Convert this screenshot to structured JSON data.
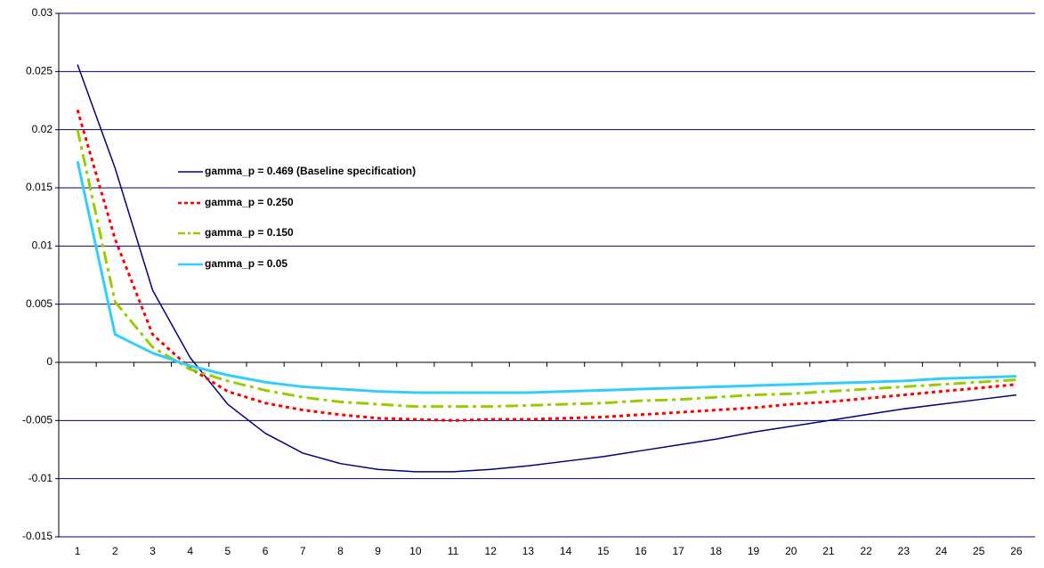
{
  "chart_data": {
    "type": "line",
    "categories": [
      1,
      2,
      3,
      4,
      5,
      6,
      7,
      8,
      9,
      10,
      11,
      12,
      13,
      14,
      15,
      16,
      17,
      18,
      19,
      20,
      21,
      22,
      23,
      24,
      25,
      26
    ],
    "ylim": [
      -0.015,
      0.03
    ],
    "yticks": [
      -0.015,
      -0.01,
      -0.005,
      0,
      0.005,
      0.01,
      0.015,
      0.02,
      0.025,
      0.03
    ],
    "grid": true,
    "series": [
      {
        "name": "gamma_p = 0.469 (Baseline specification)",
        "color": "#000080",
        "dash": "solid",
        "values": [
          0.0256,
          0.0167,
          0.0062,
          0.0004,
          -0.0036,
          -0.0061,
          -0.0078,
          -0.0087,
          -0.0092,
          -0.0094,
          -0.0094,
          -0.0092,
          -0.0089,
          -0.0085,
          -0.0081,
          -0.0076,
          -0.0071,
          -0.0066,
          -0.006,
          -0.0055,
          -0.005,
          -0.0045,
          -0.004,
          -0.0036,
          -0.0032,
          -0.0028
        ]
      },
      {
        "name": "gamma_p = 0.250",
        "color": "#ff0000",
        "dash": "dashed",
        "values": [
          0.0217,
          0.0106,
          0.0024,
          -0.0005,
          -0.0025,
          -0.0035,
          -0.0041,
          -0.0045,
          -0.0048,
          -0.0049,
          -0.005,
          -0.0049,
          -0.0049,
          -0.0048,
          -0.0047,
          -0.0045,
          -0.0043,
          -0.0041,
          -0.0039,
          -0.0036,
          -0.0034,
          -0.0031,
          -0.0028,
          -0.0025,
          -0.0022,
          -0.0019
        ]
      },
      {
        "name": "gamma_p = 0.150",
        "color": "#99cc00",
        "dash": "dashdot",
        "values": [
          0.02,
          0.0052,
          0.0013,
          -0.0006,
          -0.0016,
          -0.0024,
          -0.003,
          -0.0034,
          -0.0036,
          -0.0038,
          -0.0038,
          -0.0038,
          -0.0037,
          -0.0036,
          -0.0035,
          -0.0033,
          -0.0032,
          -0.003,
          -0.0028,
          -0.0027,
          -0.0025,
          -0.0023,
          -0.0021,
          -0.0019,
          -0.0017,
          -0.0015
        ]
      },
      {
        "name": "gamma_p = 0.05",
        "color": "#33ccff",
        "dash": "solid",
        "values": [
          0.0173,
          0.0024,
          0.0008,
          -0.0003,
          -0.0011,
          -0.0017,
          -0.0021,
          -0.0023,
          -0.0025,
          -0.0026,
          -0.0026,
          -0.0026,
          -0.0026,
          -0.0025,
          -0.0024,
          -0.0023,
          -0.0022,
          -0.0021,
          -0.002,
          -0.0019,
          -0.0018,
          -0.0017,
          -0.0016,
          -0.0014,
          -0.0013,
          -0.0012
        ]
      }
    ]
  }
}
